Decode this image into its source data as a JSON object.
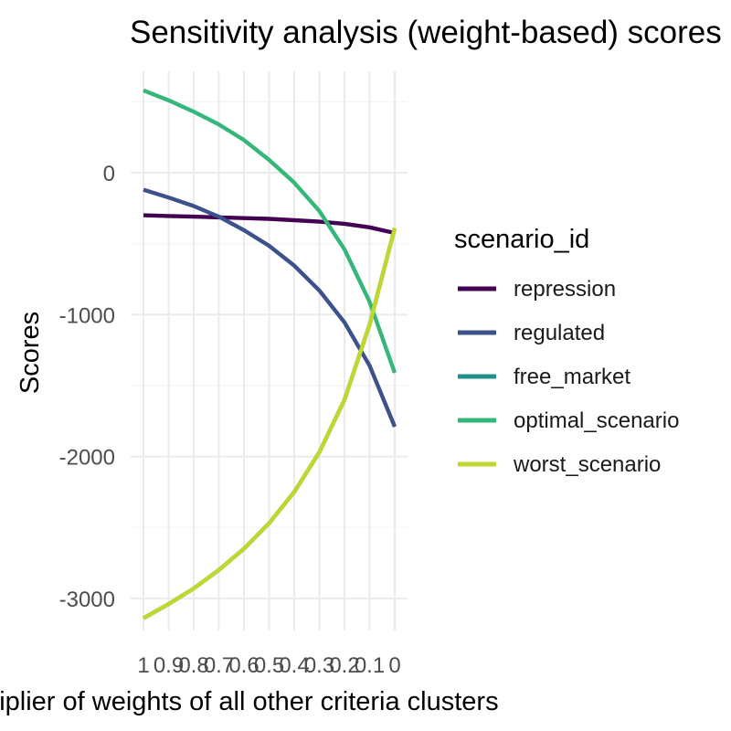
{
  "chart_data": {
    "type": "line",
    "title": "Sensitivity analysis (weight-based) scores",
    "xlabel": "Multiplier of weights of all other criteria clusters",
    "ylabel": "Scores",
    "x": [
      1,
      0.9,
      0.8,
      0.7,
      0.6,
      0.5,
      0.4,
      0.3,
      0.2,
      0.1,
      0
    ],
    "x_tick_labels": [
      "1",
      "0.9",
      "0.8",
      "0.7",
      "0.6",
      "0.5",
      "0.4",
      "0.3",
      "0.2",
      "0.1",
      "0"
    ],
    "x_reversed": true,
    "y_ticks": [
      0,
      -1000,
      -2000,
      -3000
    ],
    "y_tick_labels": [
      "0",
      "-1000",
      "-2000",
      "-3000"
    ],
    "xlim": [
      1,
      0
    ],
    "ylim": [
      -3170,
      600
    ],
    "grid": true,
    "legend_title": "scenario_id",
    "legend_position": "right",
    "series": [
      {
        "name": "repression",
        "color": "#440154",
        "values": [
          -300,
          -305,
          -310,
          -315,
          -320,
          -325,
          -335,
          -345,
          -360,
          -385,
          -425
        ]
      },
      {
        "name": "regulated",
        "color": "#3B528B",
        "values": [
          -120,
          -175,
          -235,
          -310,
          -405,
          -515,
          -655,
          -830,
          -1055,
          -1360,
          -1790
        ]
      },
      {
        "name": "free_market",
        "color": "#21908C",
        "values": [
          -3140,
          -3040,
          -2930,
          -2800,
          -2650,
          -2470,
          -2250,
          -1970,
          -1600,
          -1070,
          -390
        ]
      },
      {
        "name": "optimal_scenario",
        "color": "#35B779",
        "values": [
          580,
          510,
          430,
          340,
          230,
          90,
          -70,
          -270,
          -540,
          -910,
          -1410
        ]
      },
      {
        "name": "worst_scenario",
        "color": "#C1D72F",
        "values": [
          -3140,
          -3040,
          -2930,
          -2800,
          -2650,
          -2470,
          -2250,
          -1970,
          -1600,
          -1070,
          -390
        ]
      }
    ]
  }
}
